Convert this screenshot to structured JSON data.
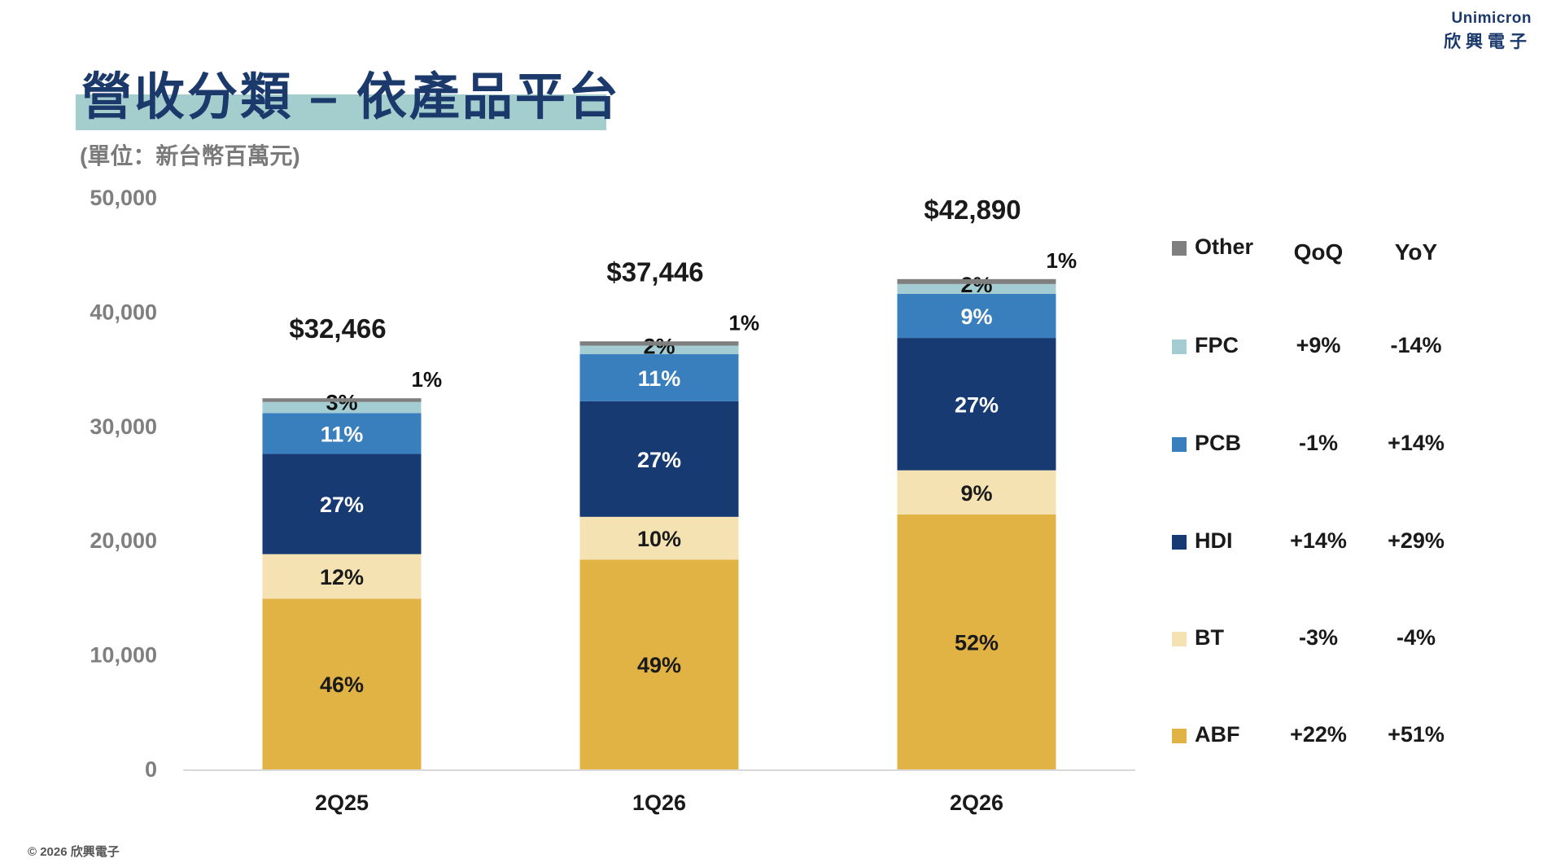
{
  "logo": {
    "english": "Unimicron",
    "chinese": "欣興電子"
  },
  "header": {
    "title": "營收分類 – 依產品平台",
    "subtitle": "(單位：新台幣百萬元)"
  },
  "footer": {
    "copyright": "© 2026 欣興電子"
  },
  "colors": {
    "ABF": "#e1b244",
    "BT": "#f4e2b3",
    "HDI": "#173a72",
    "PCB": "#3a7fbd",
    "FPC": "#a3cdd3",
    "Other": "#7f7f7f",
    "axis": "#d9d9d9",
    "title_band": "#a4cdcd"
  },
  "legend": {
    "header_qoq": "QoQ",
    "header_yoy": "YoY",
    "rows": [
      {
        "name": "Other",
        "qoq": "",
        "yoy": ""
      },
      {
        "name": "FPC",
        "qoq": "+9%",
        "yoy": "-14%"
      },
      {
        "name": "PCB",
        "qoq": "-1%",
        "yoy": "+14%"
      },
      {
        "name": "HDI",
        "qoq": "+14%",
        "yoy": "+29%"
      },
      {
        "name": "BT",
        "qoq": "-3%",
        "yoy": "-4%"
      },
      {
        "name": "ABF",
        "qoq": "+22%",
        "yoy": "+51%"
      }
    ]
  },
  "chart_data": {
    "type": "bar",
    "stacked": true,
    "categories": [
      "2Q25",
      "1Q26",
      "2Q26"
    ],
    "totals": [
      32466,
      37446,
      42890
    ],
    "total_labels": [
      "$32,466",
      "$37,446",
      "$42,890"
    ],
    "ylim": [
      0,
      50000
    ],
    "yticks": [
      0,
      10000,
      20000,
      30000,
      40000,
      50000
    ],
    "ytick_labels": [
      "0",
      "10,000",
      "20,000",
      "30,000",
      "40,000",
      "50,000"
    ],
    "legend_position": "right",
    "series": [
      {
        "name": "ABF",
        "share": [
          46,
          49,
          52
        ],
        "labels": [
          "46%",
          "49%",
          "52%"
        ]
      },
      {
        "name": "BT",
        "share": [
          12,
          10,
          9
        ],
        "labels": [
          "12%",
          "10%",
          "9%"
        ]
      },
      {
        "name": "HDI",
        "share": [
          27,
          27,
          27
        ],
        "labels": [
          "27%",
          "27%",
          "27%"
        ]
      },
      {
        "name": "PCB",
        "share": [
          11,
          11,
          9
        ],
        "labels": [
          "11%",
          "11%",
          "9%"
        ]
      },
      {
        "name": "FPC",
        "share": [
          3,
          2,
          2
        ],
        "labels": [
          "3%",
          "2%",
          "2%"
        ]
      },
      {
        "name": "Other",
        "share": [
          1,
          1,
          1
        ],
        "labels": [
          "1%",
          "1%",
          "1%"
        ]
      }
    ]
  }
}
